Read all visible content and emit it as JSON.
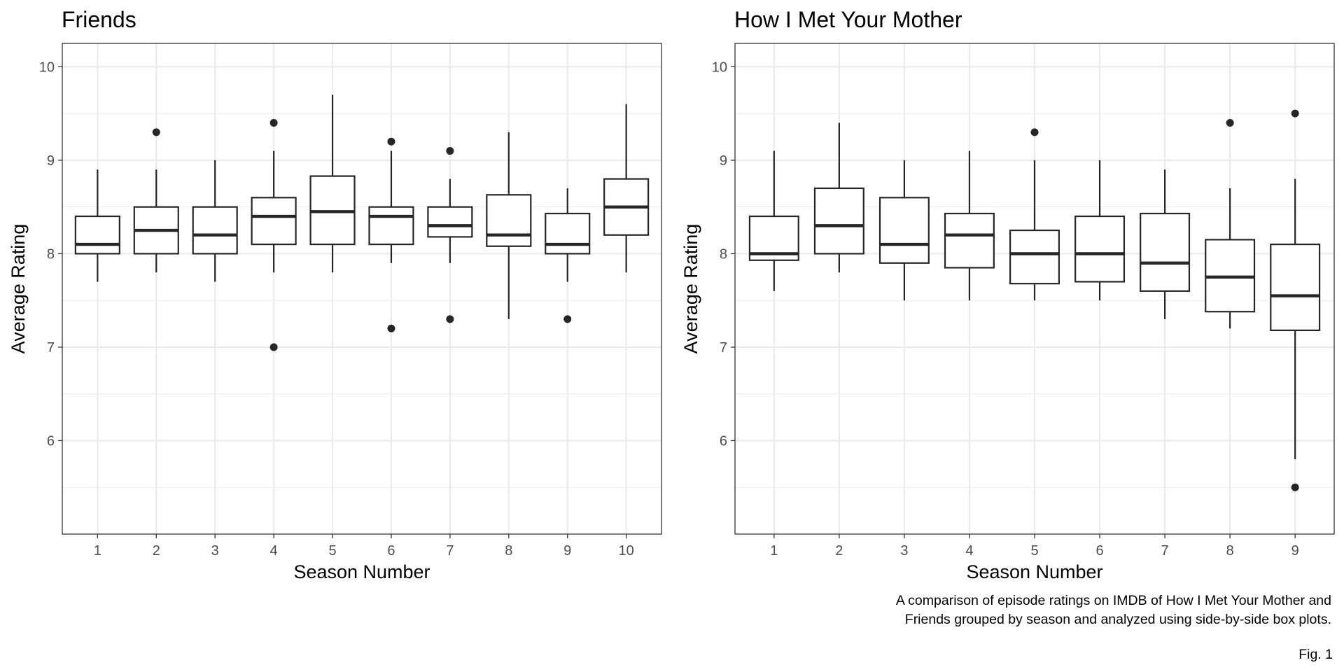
{
  "caption": {
    "line1": "A comparison of episode ratings on IMDB of How I Met Your Mother and",
    "line2": "Friends grouped by season and analyzed using side-by-side box plots."
  },
  "figure_label": "Fig. 1",
  "colors": {
    "box_stroke": "#262626",
    "grid": "#ebebeb",
    "panel_border": "#333333",
    "tick_text": "#4d4d4d"
  },
  "chart_data": [
    {
      "type": "box",
      "title": "Friends",
      "xlabel": "Season Number",
      "ylabel": "Average Rating",
      "ylim": [
        5,
        10.25
      ],
      "yticks": [
        6,
        7,
        8,
        9,
        10
      ],
      "grid": true,
      "categories": [
        "1",
        "2",
        "3",
        "4",
        "5",
        "6",
        "7",
        "8",
        "9",
        "10"
      ],
      "boxes": [
        {
          "q1": 8.0,
          "median": 8.1,
          "q3": 8.4,
          "whisker_low": 7.7,
          "whisker_high": 8.9,
          "outliers": []
        },
        {
          "q1": 8.0,
          "median": 8.25,
          "q3": 8.5,
          "whisker_low": 7.8,
          "whisker_high": 8.9,
          "outliers": [
            9.3
          ]
        },
        {
          "q1": 8.0,
          "median": 8.2,
          "q3": 8.5,
          "whisker_low": 7.7,
          "whisker_high": 9.0,
          "outliers": []
        },
        {
          "q1": 8.1,
          "median": 8.4,
          "q3": 8.6,
          "whisker_low": 7.8,
          "whisker_high": 9.1,
          "outliers": [
            9.4,
            7.0
          ]
        },
        {
          "q1": 8.1,
          "median": 8.45,
          "q3": 8.83,
          "whisker_low": 7.8,
          "whisker_high": 9.7,
          "outliers": []
        },
        {
          "q1": 8.1,
          "median": 8.4,
          "q3": 8.5,
          "whisker_low": 7.9,
          "whisker_high": 9.1,
          "outliers": [
            9.2,
            7.2
          ]
        },
        {
          "q1": 8.18,
          "median": 8.3,
          "q3": 8.5,
          "whisker_low": 7.9,
          "whisker_high": 8.8,
          "outliers": [
            9.1,
            7.3
          ]
        },
        {
          "q1": 8.08,
          "median": 8.2,
          "q3": 8.63,
          "whisker_low": 7.3,
          "whisker_high": 9.3,
          "outliers": []
        },
        {
          "q1": 8.0,
          "median": 8.1,
          "q3": 8.43,
          "whisker_low": 7.7,
          "whisker_high": 8.7,
          "outliers": [
            7.3
          ]
        },
        {
          "q1": 8.2,
          "median": 8.5,
          "q3": 8.8,
          "whisker_low": 7.8,
          "whisker_high": 9.6,
          "outliers": []
        }
      ]
    },
    {
      "type": "box",
      "title": "How I Met Your Mother",
      "xlabel": "Season Number",
      "ylabel": "Average Rating",
      "ylim": [
        5,
        10.25
      ],
      "yticks": [
        6,
        7,
        8,
        9,
        10
      ],
      "grid": true,
      "categories": [
        "1",
        "2",
        "3",
        "4",
        "5",
        "6",
        "7",
        "8",
        "9"
      ],
      "boxes": [
        {
          "q1": 7.93,
          "median": 8.0,
          "q3": 8.4,
          "whisker_low": 7.6,
          "whisker_high": 9.1,
          "outliers": []
        },
        {
          "q1": 8.0,
          "median": 8.3,
          "q3": 8.7,
          "whisker_low": 7.8,
          "whisker_high": 9.4,
          "outliers": []
        },
        {
          "q1": 7.9,
          "median": 8.1,
          "q3": 8.6,
          "whisker_low": 7.5,
          "whisker_high": 9.0,
          "outliers": []
        },
        {
          "q1": 7.85,
          "median": 8.2,
          "q3": 8.43,
          "whisker_low": 7.5,
          "whisker_high": 9.1,
          "outliers": []
        },
        {
          "q1": 7.68,
          "median": 8.0,
          "q3": 8.25,
          "whisker_low": 7.5,
          "whisker_high": 9.0,
          "outliers": [
            9.3
          ]
        },
        {
          "q1": 7.7,
          "median": 8.0,
          "q3": 8.4,
          "whisker_low": 7.5,
          "whisker_high": 9.0,
          "outliers": []
        },
        {
          "q1": 7.6,
          "median": 7.9,
          "q3": 8.43,
          "whisker_low": 7.3,
          "whisker_high": 8.9,
          "outliers": []
        },
        {
          "q1": 7.38,
          "median": 7.75,
          "q3": 8.15,
          "whisker_low": 7.2,
          "whisker_high": 8.7,
          "outliers": [
            9.4
          ]
        },
        {
          "q1": 7.18,
          "median": 7.55,
          "q3": 8.1,
          "whisker_low": 5.8,
          "whisker_high": 8.8,
          "outliers": [
            9.5,
            5.5
          ]
        }
      ]
    }
  ]
}
